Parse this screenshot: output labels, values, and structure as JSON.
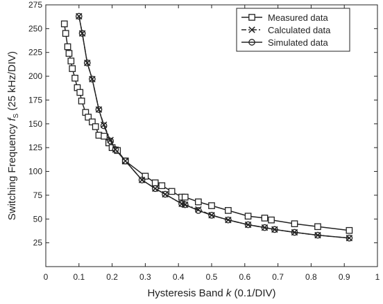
{
  "chart_data": {
    "type": "line",
    "xlabel_prefix": "Hysteresis Band ",
    "xlabel_var": "k",
    "xlabel_suffix": " (0.1/DIV)",
    "ylabel_prefix": "Switching Frequency ",
    "ylabel_var": "f",
    "ylabel_sub": "S",
    "ylabel_suffix": " (25 kHz/DIV)",
    "xlim": [
      0,
      1
    ],
    "ylim": [
      0,
      275
    ],
    "xticks": [
      0,
      0.1,
      0.2,
      0.3,
      0.4,
      0.5,
      0.6,
      0.7,
      0.8,
      0.9,
      1
    ],
    "xtick_labels": [
      "0",
      "0.1",
      "0.2",
      "0.3",
      "0.4",
      "0.5",
      "0.6",
      "0.7",
      "0.8",
      "0.9",
      "1"
    ],
    "yticks": [
      25,
      50,
      75,
      100,
      125,
      150,
      175,
      200,
      225,
      250,
      275
    ],
    "ytick_labels": [
      "25",
      "50",
      "75",
      "100",
      "125",
      "150",
      "175",
      "200",
      "225",
      "250",
      "275"
    ],
    "grid": false,
    "legend_position": "top-right",
    "series": [
      {
        "name": "Measured data",
        "marker": "square",
        "line": "solid",
        "x": [
          0.056,
          0.06,
          0.066,
          0.07,
          0.076,
          0.08,
          0.088,
          0.095,
          0.103,
          0.108,
          0.12,
          0.128,
          0.14,
          0.15,
          0.16,
          0.176,
          0.19,
          0.2,
          0.216,
          0.24,
          0.3,
          0.33,
          0.35,
          0.38,
          0.41,
          0.42,
          0.46,
          0.5,
          0.55,
          0.61,
          0.66,
          0.68,
          0.75,
          0.82,
          0.915
        ],
        "y": [
          255,
          245,
          231,
          224,
          216,
          208,
          198,
          188,
          183,
          174,
          162,
          157,
          152,
          147,
          138,
          137,
          130,
          125,
          122,
          111,
          95,
          88,
          85,
          79,
          73,
          73,
          68,
          64,
          59,
          53,
          51,
          49,
          45,
          42,
          38
        ]
      },
      {
        "name": "Calculated data",
        "marker": "x",
        "line": "dashdot",
        "x": [
          0.1,
          0.11,
          0.125,
          0.14,
          0.16,
          0.175,
          0.195,
          0.21,
          0.24,
          0.29,
          0.33,
          0.36,
          0.41,
          0.42,
          0.46,
          0.5,
          0.55,
          0.61,
          0.66,
          0.69,
          0.75,
          0.82,
          0.915
        ],
        "y": [
          263,
          245,
          214,
          197,
          165,
          149,
          133,
          123,
          111,
          91,
          82,
          76,
          66,
          65,
          60,
          54,
          49,
          44,
          41,
          39,
          36,
          33,
          30
        ]
      },
      {
        "name": "Simulated data",
        "marker": "circle",
        "line": "solid",
        "x": [
          0.1,
          0.11,
          0.125,
          0.14,
          0.16,
          0.175,
          0.195,
          0.21,
          0.24,
          0.29,
          0.33,
          0.36,
          0.41,
          0.42,
          0.46,
          0.5,
          0.55,
          0.61,
          0.66,
          0.69,
          0.75,
          0.82,
          0.915
        ],
        "y": [
          263,
          245,
          214,
          197,
          165,
          148,
          132,
          123,
          111,
          91,
          82,
          76,
          66,
          65,
          59,
          54,
          49,
          44,
          41,
          39,
          36,
          33,
          30
        ]
      }
    ]
  }
}
